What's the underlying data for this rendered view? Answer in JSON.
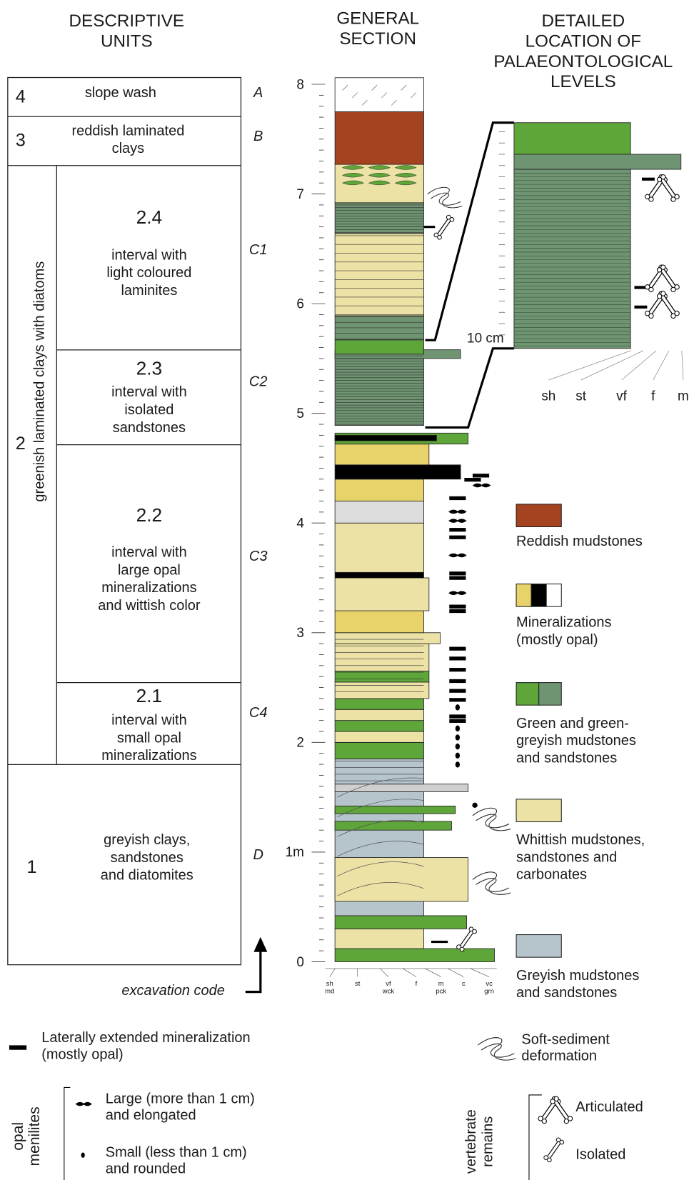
{
  "headers": {
    "descriptive_units": [
      "DESCRIPTIVE",
      "UNITS"
    ],
    "general_section": [
      "GENERAL",
      "SECTION"
    ],
    "detailed_location": [
      "DETAILED",
      "LOCATION OF",
      "PALAEONTOLOGICAL",
      "LEVELS"
    ]
  },
  "units": [
    {
      "number": "4",
      "description": [
        "slope wash"
      ],
      "code": "A"
    },
    {
      "number": "3",
      "description": [
        "reddish laminated",
        "clays"
      ],
      "code": "B"
    },
    {
      "number": "2",
      "description": [
        "greenish laminated clays with diatoms"
      ],
      "subunits": [
        {
          "number": "2.4",
          "description": [
            "interval with",
            "light coloured",
            "laminites"
          ],
          "code": "C1"
        },
        {
          "number": "2.3",
          "description": [
            "interval with",
            "isolated",
            "sandstones"
          ],
          "code": "C2"
        },
        {
          "number": "2.2",
          "description": [
            "interval with",
            "large opal",
            "mineralizations",
            "and wittish color"
          ],
          "code": "C3"
        },
        {
          "number": "2.1",
          "description": [
            "interval with",
            "small opal",
            "mineralizations"
          ],
          "code": "C4"
        }
      ]
    },
    {
      "number": "1",
      "description": [
        "greyish clays,",
        "sandstones",
        "and diatomites"
      ],
      "code": "D"
    }
  ],
  "section": {
    "scale_labels": [
      "0",
      "1m",
      "2",
      "3",
      "4",
      "5",
      "6",
      "7",
      "8"
    ],
    "grain_sizes": [
      [
        "sh",
        "md"
      ],
      [
        "st"
      ],
      [
        "vf",
        "wck"
      ],
      [
        "f"
      ],
      [
        "m",
        "pck"
      ],
      [
        "c"
      ],
      [
        "vc",
        "grn"
      ]
    ],
    "excavation_code": "excavation code"
  },
  "detail": {
    "scale_label": "10 cm",
    "grain_sizes": [
      "sh",
      "st",
      "vf",
      "f",
      "m"
    ]
  },
  "legend": [
    {
      "label": [
        "Reddish mudstones"
      ],
      "colors": [
        "#a5421f"
      ]
    },
    {
      "label": [
        "Mineralizations",
        "(mostly opal)"
      ],
      "colors": [
        "#e8d26a",
        "#000000",
        "#ffffff"
      ]
    },
    {
      "label": [
        "Green and green-",
        "greyish mudstones",
        "and sandstones"
      ],
      "colors": [
        "#5ea53a",
        "#6f9472"
      ]
    },
    {
      "label": [
        "Whittish mudstones,",
        "sandstones and",
        "carbonates"
      ],
      "colors": [
        "#ede2a6"
      ]
    },
    {
      "label": [
        "Greyish mudstones",
        "and sandstones"
      ],
      "colors": [
        "#b6c4cc"
      ]
    }
  ],
  "symbols": {
    "lateral_mineralization": [
      "Laterally extended  mineralization",
      "(mostly opal)"
    ],
    "soft_sediment": [
      "Soft-sediment",
      "deformation"
    ],
    "opal_menilites": {
      "title": [
        "opal",
        "menilites"
      ],
      "large": [
        "Large (more than 1 cm)",
        "and elongated"
      ],
      "small": [
        "Small (less than 1 cm)",
        "and rounded"
      ]
    },
    "vertebrate_remains": {
      "title": [
        "vertebrate",
        "remains"
      ],
      "articulated": "Articulated",
      "isolated": "Isolated"
    }
  }
}
